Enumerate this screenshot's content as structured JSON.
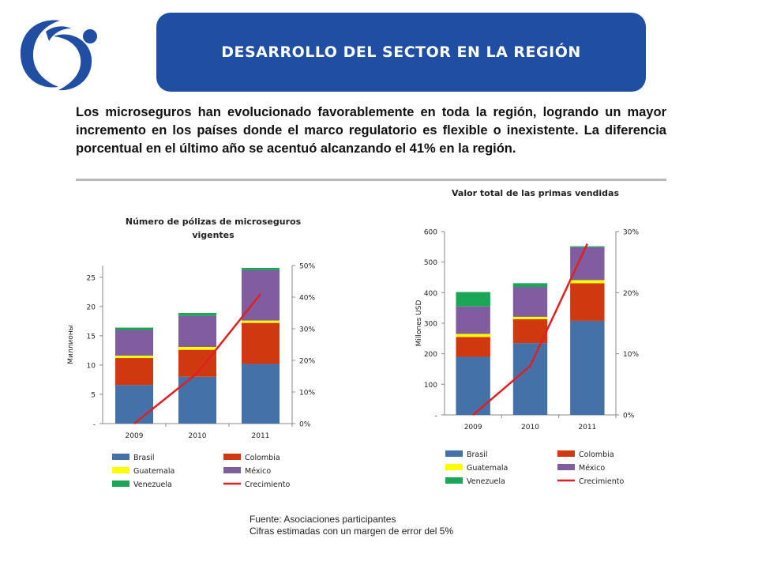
{
  "header": {
    "title": "DESARROLLO DEL  SECTOR  EN  LA  REGIÓN"
  },
  "intro_text": "Los microseguros han evolucionado favorablemente en toda la región, logrando un mayor incremento en los países donde el marco regulatorio es flexible o inexistente. La diferencia porcentual en el último año se acentuó alcanzando  el 41% en la región.",
  "colors": {
    "banner": "#1f4ea3",
    "Brasil": "#4472a8",
    "Colombia": "#d0390f",
    "Guatemala": "#ffff00",
    "México": "#7f5d9e",
    "Venezuela": "#1ba557",
    "Crecimiento": "#e02020"
  },
  "chart_data": [
    {
      "type": "bar",
      "stacked": true,
      "title_lines": [
        "Número de pólizas de microseguros",
        "vigentes"
      ],
      "ylabel": "Миллионы",
      "categories": [
        "2009",
        "2010",
        "2011"
      ],
      "ylim": [
        0,
        27
      ],
      "y_ticks": [
        0,
        5,
        10,
        15,
        20,
        25
      ],
      "y_tick_labels": [
        "-",
        "5",
        "10",
        "15",
        "20",
        "25"
      ],
      "y2lim": [
        0,
        0.5
      ],
      "y2_ticks": [
        0,
        0.1,
        0.2,
        0.3,
        0.4,
        0.5
      ],
      "y2_tick_labels": [
        "0%",
        "10%",
        "20%",
        "30%",
        "40%",
        "50%"
      ],
      "series": [
        {
          "name": "Brasil",
          "values": [
            6.6,
            8.0,
            10.2
          ]
        },
        {
          "name": "Colombia",
          "values": [
            4.6,
            4.6,
            7.0
          ]
        },
        {
          "name": "Guatemala",
          "values": [
            0.4,
            0.5,
            0.4
          ]
        },
        {
          "name": "México",
          "values": [
            4.4,
            5.3,
            8.6
          ]
        },
        {
          "name": "Venezuela",
          "values": [
            0.4,
            0.5,
            0.4
          ]
        }
      ],
      "line_series": {
        "name": "Crecimiento",
        "values": [
          0.0,
          0.16,
          0.41
        ]
      },
      "legend": [
        "Brasil",
        "Colombia",
        "Guatemala",
        "México",
        "Venezuela",
        "Crecimiento"
      ],
      "grid": false,
      "legend_position": "bottom"
    },
    {
      "type": "bar",
      "stacked": true,
      "title_lines": [
        "Valor total de las primas vendidas"
      ],
      "ylabel": "Millones USD",
      "categories": [
        "2009",
        "2010",
        "2011"
      ],
      "ylim": [
        0,
        600
      ],
      "y_ticks": [
        0,
        100,
        200,
        300,
        400,
        500,
        600
      ],
      "y_tick_labels": [
        "-",
        "100",
        "200",
        "300",
        "400",
        "500",
        "600"
      ],
      "y2lim": [
        0,
        0.3
      ],
      "y2_ticks": [
        0,
        0.1,
        0.2,
        0.3
      ],
      "y2_tick_labels": [
        "0%",
        "10%",
        "20%",
        "30%"
      ],
      "series": [
        {
          "name": "Brasil",
          "values": [
            190,
            235,
            308
          ]
        },
        {
          "name": "Colombia",
          "values": [
            65,
            78,
            123
          ]
        },
        {
          "name": "Guatemala",
          "values": [
            10,
            8,
            10
          ]
        },
        {
          "name": "México",
          "values": [
            90,
            98,
            108
          ]
        },
        {
          "name": "Venezuela",
          "values": [
            47,
            12,
            3
          ]
        }
      ],
      "line_series": {
        "name": "Crecimiento",
        "values": [
          0.0,
          0.08,
          0.28
        ]
      },
      "legend": [
        "Brasil",
        "Colombia",
        "Guatemala",
        "México",
        "Venezuela",
        "Crecimiento"
      ],
      "grid": false,
      "legend_position": "bottom"
    }
  ],
  "footer": {
    "line1": "Fuente: Asociaciones participantes",
    "line2": "Cifras estimadas con un margen de error del 5%"
  }
}
